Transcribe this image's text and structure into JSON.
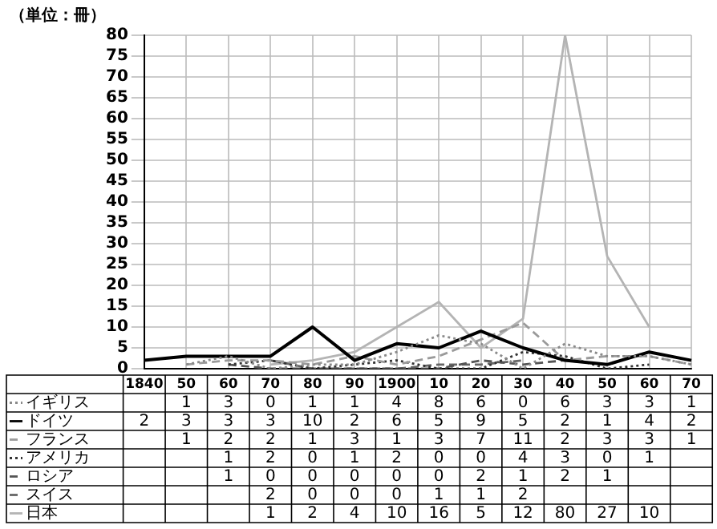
{
  "chart_data": {
    "type": "line",
    "ylabel": "（単位：冊）",
    "categories": [
      "1840",
      "50",
      "60",
      "70",
      "80",
      "90",
      "1900",
      "10",
      "20",
      "30",
      "40",
      "50",
      "60",
      "70"
    ],
    "series": [
      {
        "name": "イギリス",
        "color": "#8a8a8a",
        "line_style": "dotted",
        "values": [
          null,
          1,
          3,
          0,
          1,
          1,
          4,
          8,
          6,
          0,
          6,
          3,
          3,
          1
        ]
      },
      {
        "name": "ドイツ",
        "color": "#000000",
        "line_style": "solid",
        "values": [
          2,
          3,
          3,
          3,
          10,
          2,
          6,
          5,
          9,
          5,
          2,
          1,
          4,
          2
        ]
      },
      {
        "name": "フランス",
        "color": "#9a9a9a",
        "line_style": "dashed",
        "values": [
          null,
          1,
          2,
          2,
          1,
          3,
          1,
          3,
          7,
          11,
          2,
          3,
          3,
          1
        ]
      },
      {
        "name": "アメリカ",
        "color": "#333333",
        "line_style": "dotted",
        "values": [
          null,
          null,
          1,
          2,
          0,
          1,
          2,
          0,
          0,
          4,
          3,
          0,
          1,
          null
        ]
      },
      {
        "name": "ロシア",
        "color": "#555555",
        "line_style": "dashed",
        "values": [
          null,
          null,
          1,
          0,
          0,
          0,
          0,
          0,
          2,
          1,
          2,
          1,
          null,
          null
        ]
      },
      {
        "name": "スイス",
        "color": "#666666",
        "line_style": "dashed",
        "values": [
          null,
          null,
          null,
          2,
          0,
          0,
          0,
          1,
          1,
          2,
          null,
          null,
          null,
          null
        ]
      },
      {
        "name": "日本",
        "color": "#b4b4b4",
        "line_style": "solid",
        "values": [
          null,
          null,
          null,
          1,
          2,
          4,
          10,
          16,
          5,
          12,
          80,
          27,
          10,
          null
        ]
      }
    ],
    "ylim": [
      0,
      80
    ],
    "yticks": [
      0,
      5,
      10,
      15,
      20,
      25,
      30,
      35,
      40,
      45,
      50,
      55,
      60,
      65,
      70,
      75,
      80
    ],
    "grid": true,
    "legend": "bottom",
    "data_labels": true,
    "marker": "none"
  }
}
